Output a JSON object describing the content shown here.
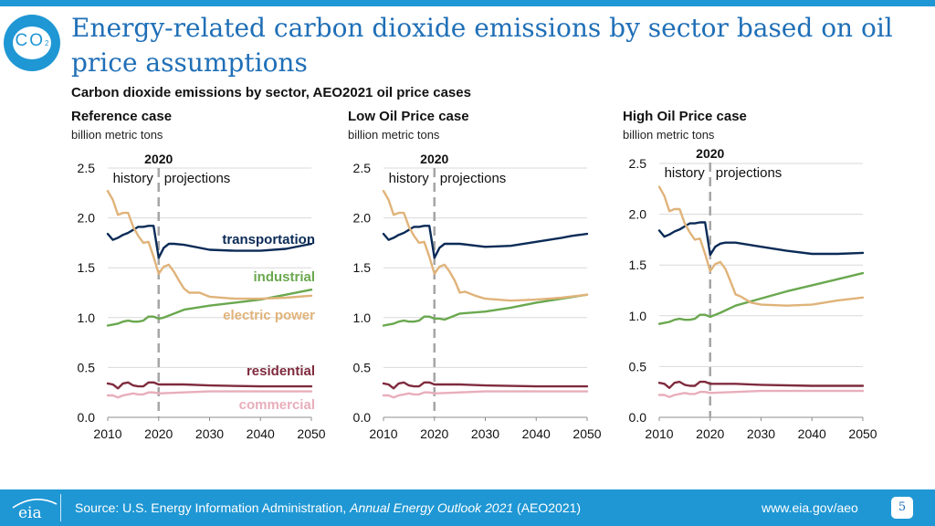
{
  "slide": {
    "title": "Energy-related carbon dioxide emissions by sector based on oil price assumptions",
    "subtitle": "Carbon dioxide emissions by sector, AEO2021 oil price cases",
    "badge_text": "CO",
    "badge_sub": "2",
    "page_number": "5"
  },
  "footer": {
    "source_prefix": "Source: U.S. Energy Information Administration, ",
    "source_italic": "Annual Energy Outlook 2021",
    "source_suffix": " (AEO2021)",
    "url": "www.eia.gov/aeo",
    "logo_text": "eia"
  },
  "colors": {
    "transportation": "#0b2b57",
    "industrial": "#6aa84f",
    "electric_power": "#e0b37a",
    "residential": "#7f2b3e",
    "commercial": "#e8aebb",
    "grid": "#d9d9d9",
    "divider": "#a6a6a6",
    "accent": "#1f97d4"
  },
  "chart_data": [
    {
      "type": "line",
      "title": "Reference case",
      "ylabel": "billion metric tons",
      "ylim": [
        0,
        2.5
      ],
      "xlim": [
        2010,
        2050
      ],
      "y_ticks": [
        "0.0",
        "0.5",
        "1.0",
        "1.5",
        "2.0",
        "2.5"
      ],
      "x_ticks": [
        "2010",
        "2020",
        "2030",
        "2040",
        "2050"
      ],
      "marker": {
        "year": 2020,
        "label": "2020",
        "history": "history",
        "projections": "projections"
      },
      "series_labels": {
        "transportation": "transportation",
        "industrial": "industrial",
        "electric_power": "electric power",
        "residential": "residential",
        "commercial": "commercial"
      },
      "series": [
        {
          "key": "transportation",
          "name": "transportation",
          "x": [
            2010,
            2011,
            2012,
            2013,
            2014,
            2015,
            2016,
            2017,
            2018,
            2019,
            2020,
            2021,
            2022,
            2023,
            2025,
            2030,
            2035,
            2040,
            2045,
            2050
          ],
          "values": [
            1.84,
            1.78,
            1.8,
            1.83,
            1.85,
            1.88,
            1.91,
            1.91,
            1.92,
            1.92,
            1.6,
            1.7,
            1.74,
            1.74,
            1.73,
            1.68,
            1.67,
            1.67,
            1.69,
            1.74
          ]
        },
        {
          "key": "industrial",
          "name": "industrial",
          "x": [
            2010,
            2011,
            2012,
            2013,
            2014,
            2015,
            2016,
            2017,
            2018,
            2019,
            2020,
            2021,
            2022,
            2025,
            2030,
            2035,
            2040,
            2045,
            2050
          ],
          "values": [
            0.92,
            0.93,
            0.94,
            0.96,
            0.97,
            0.96,
            0.96,
            0.97,
            1.01,
            1.01,
            0.99,
            1.0,
            1.02,
            1.08,
            1.12,
            1.15,
            1.18,
            1.23,
            1.28
          ]
        },
        {
          "key": "electric_power",
          "name": "electric power",
          "x": [
            2010,
            2011,
            2012,
            2013,
            2014,
            2015,
            2016,
            2017,
            2018,
            2019,
            2020,
            2021,
            2022,
            2023,
            2024,
            2025,
            2026,
            2028,
            2030,
            2035,
            2040,
            2045,
            2050
          ],
          "values": [
            2.27,
            2.18,
            2.03,
            2.05,
            2.05,
            1.91,
            1.82,
            1.75,
            1.76,
            1.61,
            1.44,
            1.51,
            1.53,
            1.46,
            1.37,
            1.29,
            1.25,
            1.25,
            1.21,
            1.19,
            1.19,
            1.2,
            1.22
          ]
        },
        {
          "key": "residential",
          "name": "residential",
          "x": [
            2010,
            2011,
            2012,
            2013,
            2014,
            2015,
            2016,
            2017,
            2018,
            2019,
            2020,
            2025,
            2030,
            2040,
            2050
          ],
          "values": [
            0.34,
            0.33,
            0.29,
            0.34,
            0.35,
            0.32,
            0.31,
            0.31,
            0.35,
            0.35,
            0.33,
            0.33,
            0.32,
            0.31,
            0.31
          ]
        },
        {
          "key": "commercial",
          "name": "commercial",
          "x": [
            2010,
            2011,
            2012,
            2013,
            2014,
            2015,
            2016,
            2017,
            2018,
            2019,
            2020,
            2025,
            2030,
            2040,
            2050
          ],
          "values": [
            0.22,
            0.22,
            0.2,
            0.22,
            0.23,
            0.24,
            0.23,
            0.23,
            0.25,
            0.25,
            0.24,
            0.25,
            0.26,
            0.26,
            0.26
          ]
        }
      ]
    },
    {
      "type": "line",
      "title": "Low Oil Price case",
      "ylabel": "billion metric tons",
      "ylim": [
        0,
        2.5
      ],
      "xlim": [
        2010,
        2050
      ],
      "y_ticks": [
        "0.0",
        "0.5",
        "1.0",
        "1.5",
        "2.0",
        "2.5"
      ],
      "x_ticks": [
        "2010",
        "2020",
        "2030",
        "2040",
        "2050"
      ],
      "marker": {
        "year": 2020,
        "label": "2020",
        "history": "history",
        "projections": "projections"
      },
      "series": [
        {
          "key": "transportation",
          "name": "transportation",
          "x": [
            2010,
            2011,
            2012,
            2013,
            2014,
            2015,
            2016,
            2017,
            2018,
            2019,
            2020,
            2021,
            2022,
            2023,
            2025,
            2030,
            2035,
            2040,
            2045,
            2047,
            2050
          ],
          "values": [
            1.84,
            1.78,
            1.8,
            1.83,
            1.85,
            1.88,
            1.91,
            1.91,
            1.92,
            1.92,
            1.6,
            1.7,
            1.74,
            1.74,
            1.74,
            1.71,
            1.72,
            1.76,
            1.8,
            1.82,
            1.84
          ]
        },
        {
          "key": "industrial",
          "name": "industrial",
          "x": [
            2010,
            2011,
            2012,
            2013,
            2014,
            2015,
            2016,
            2017,
            2018,
            2019,
            2020,
            2021,
            2022,
            2025,
            2030,
            2035,
            2040,
            2045,
            2050
          ],
          "values": [
            0.92,
            0.93,
            0.94,
            0.96,
            0.97,
            0.96,
            0.96,
            0.97,
            1.01,
            1.01,
            0.99,
            0.99,
            0.98,
            1.04,
            1.06,
            1.1,
            1.15,
            1.19,
            1.23
          ]
        },
        {
          "key": "electric_power",
          "name": "electric power",
          "x": [
            2010,
            2011,
            2012,
            2013,
            2014,
            2015,
            2016,
            2017,
            2018,
            2019,
            2020,
            2021,
            2022,
            2023,
            2024,
            2025,
            2026,
            2028,
            2030,
            2035,
            2040,
            2045,
            2050
          ],
          "values": [
            2.27,
            2.18,
            2.03,
            2.05,
            2.05,
            1.91,
            1.82,
            1.75,
            1.76,
            1.61,
            1.44,
            1.51,
            1.53,
            1.46,
            1.37,
            1.25,
            1.26,
            1.22,
            1.19,
            1.17,
            1.18,
            1.2,
            1.23
          ]
        },
        {
          "key": "residential",
          "name": "residential",
          "x": [
            2010,
            2011,
            2012,
            2013,
            2014,
            2015,
            2016,
            2017,
            2018,
            2019,
            2020,
            2025,
            2030,
            2040,
            2050
          ],
          "values": [
            0.34,
            0.33,
            0.29,
            0.34,
            0.35,
            0.32,
            0.31,
            0.31,
            0.35,
            0.35,
            0.33,
            0.33,
            0.32,
            0.31,
            0.31
          ]
        },
        {
          "key": "commercial",
          "name": "commercial",
          "x": [
            2010,
            2011,
            2012,
            2013,
            2014,
            2015,
            2016,
            2017,
            2018,
            2019,
            2020,
            2025,
            2030,
            2040,
            2050
          ],
          "values": [
            0.22,
            0.22,
            0.2,
            0.22,
            0.23,
            0.24,
            0.23,
            0.23,
            0.25,
            0.25,
            0.24,
            0.25,
            0.26,
            0.26,
            0.26
          ]
        }
      ]
    },
    {
      "type": "line",
      "title": "High Oil Price case",
      "ylabel": "billion metric tons",
      "ylim": [
        0,
        2.5
      ],
      "xlim": [
        2010,
        2050
      ],
      "y_ticks": [
        "0.0",
        "0.5",
        "1.0",
        "1.5",
        "2.0",
        "2.5"
      ],
      "x_ticks": [
        "2010",
        "2020",
        "2030",
        "2040",
        "2050"
      ],
      "marker": {
        "year": 2020,
        "label": "2020",
        "history": "history",
        "projections": "projections"
      },
      "series": [
        {
          "key": "transportation",
          "name": "transportation",
          "x": [
            2010,
            2011,
            2012,
            2013,
            2014,
            2015,
            2016,
            2017,
            2018,
            2019,
            2020,
            2021,
            2022,
            2023,
            2025,
            2030,
            2035,
            2040,
            2045,
            2050
          ],
          "values": [
            1.84,
            1.78,
            1.8,
            1.83,
            1.85,
            1.88,
            1.91,
            1.91,
            1.92,
            1.92,
            1.6,
            1.68,
            1.71,
            1.72,
            1.72,
            1.68,
            1.64,
            1.61,
            1.61,
            1.62
          ]
        },
        {
          "key": "industrial",
          "name": "industrial",
          "x": [
            2010,
            2011,
            2012,
            2013,
            2014,
            2015,
            2016,
            2017,
            2018,
            2019,
            2020,
            2021,
            2022,
            2025,
            2030,
            2035,
            2040,
            2045,
            2050
          ],
          "values": [
            0.92,
            0.93,
            0.94,
            0.96,
            0.97,
            0.96,
            0.96,
            0.97,
            1.01,
            1.01,
            0.99,
            1.01,
            1.03,
            1.1,
            1.17,
            1.24,
            1.3,
            1.36,
            1.42
          ]
        },
        {
          "key": "electric_power",
          "name": "electric power",
          "x": [
            2010,
            2011,
            2012,
            2013,
            2014,
            2015,
            2016,
            2017,
            2018,
            2019,
            2020,
            2021,
            2022,
            2023,
            2024,
            2025,
            2026,
            2028,
            2030,
            2035,
            2040,
            2045,
            2050
          ],
          "values": [
            2.27,
            2.18,
            2.03,
            2.05,
            2.05,
            1.91,
            1.82,
            1.75,
            1.76,
            1.61,
            1.44,
            1.51,
            1.53,
            1.46,
            1.34,
            1.21,
            1.19,
            1.13,
            1.11,
            1.1,
            1.11,
            1.15,
            1.18
          ]
        },
        {
          "key": "residential",
          "name": "residential",
          "x": [
            2010,
            2011,
            2012,
            2013,
            2014,
            2015,
            2016,
            2017,
            2018,
            2019,
            2020,
            2025,
            2030,
            2040,
            2050
          ],
          "values": [
            0.34,
            0.33,
            0.29,
            0.34,
            0.35,
            0.32,
            0.31,
            0.31,
            0.35,
            0.35,
            0.33,
            0.33,
            0.32,
            0.31,
            0.31
          ]
        },
        {
          "key": "commercial",
          "name": "commercial",
          "x": [
            2010,
            2011,
            2012,
            2013,
            2014,
            2015,
            2016,
            2017,
            2018,
            2019,
            2020,
            2025,
            2030,
            2040,
            2050
          ],
          "values": [
            0.22,
            0.22,
            0.2,
            0.22,
            0.23,
            0.24,
            0.23,
            0.23,
            0.25,
            0.25,
            0.24,
            0.25,
            0.26,
            0.26,
            0.26
          ]
        }
      ]
    }
  ]
}
